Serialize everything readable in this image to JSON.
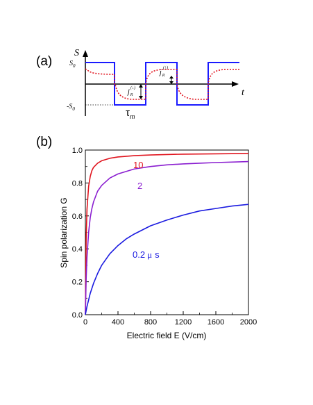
{
  "panel_a": {
    "label": "(a)",
    "y_axis_symbol": "S",
    "x_axis_symbol": "t",
    "level_high": "S",
    "level_high_sub": "0",
    "level_low": "-S",
    "level_low_sub": "0",
    "tau_label": "τ",
    "tau_sub": "m",
    "j_up_label": "j",
    "j_up_sub": "R",
    "j_up_sup": "(↑)",
    "j_down_label": "j",
    "j_down_sub": "R",
    "j_down_sup": "(↓)",
    "colors": {
      "square_wave": "#1a1aff",
      "response": "#e0141e",
      "axes": "#000000"
    }
  },
  "panel_b": {
    "label": "(b)"
  },
  "chart_data": [
    {
      "type": "line",
      "title": "",
      "xlabel": "Electric field  E  (V/cm)",
      "ylabel": "Spin  polarization  G",
      "xlim": [
        0,
        2000
      ],
      "ylim": [
        0,
        1.0
      ],
      "x_ticks": [
        "0",
        "400",
        "800",
        "1200",
        "1600",
        "2000"
      ],
      "y_ticks": [
        "0.0",
        "0.2",
        "0.4",
        "0.6",
        "0.8",
        "1.0"
      ],
      "grid": false,
      "series": [
        {
          "name": "10",
          "color": "#e0141e",
          "x": [
            0,
            10,
            20,
            40,
            60,
            80,
            100,
            150,
            200,
            300,
            400,
            600,
            800,
            1000,
            1200,
            1400,
            1600,
            1800,
            2000
          ],
          "y": [
            0,
            0.47,
            0.64,
            0.78,
            0.84,
            0.875,
            0.895,
            0.92,
            0.935,
            0.95,
            0.958,
            0.966,
            0.97,
            0.973,
            0.975,
            0.976,
            0.977,
            0.978,
            0.979
          ]
        },
        {
          "name": "2",
          "color": "#8a1ed0",
          "x": [
            0,
            10,
            20,
            40,
            60,
            80,
            100,
            150,
            200,
            300,
            400,
            600,
            800,
            1000,
            1200,
            1400,
            1600,
            1800,
            2000
          ],
          "y": [
            0,
            0.22,
            0.35,
            0.5,
            0.59,
            0.645,
            0.685,
            0.75,
            0.785,
            0.83,
            0.855,
            0.885,
            0.9,
            0.91,
            0.916,
            0.92,
            0.924,
            0.927,
            0.93
          ]
        },
        {
          "name": "0.2 μ s",
          "color": "#1a1ae0",
          "x": [
            0,
            20,
            40,
            60,
            100,
            150,
            200,
            300,
            400,
            500,
            600,
            800,
            1000,
            1200,
            1400,
            1600,
            1800,
            2000
          ],
          "y": [
            0,
            0.05,
            0.09,
            0.13,
            0.19,
            0.25,
            0.3,
            0.37,
            0.42,
            0.46,
            0.49,
            0.54,
            0.575,
            0.605,
            0.63,
            0.645,
            0.66,
            0.67
          ]
        }
      ],
      "annotations": [
        "10",
        "2",
        "0.2",
        "μ",
        "s"
      ]
    }
  ]
}
